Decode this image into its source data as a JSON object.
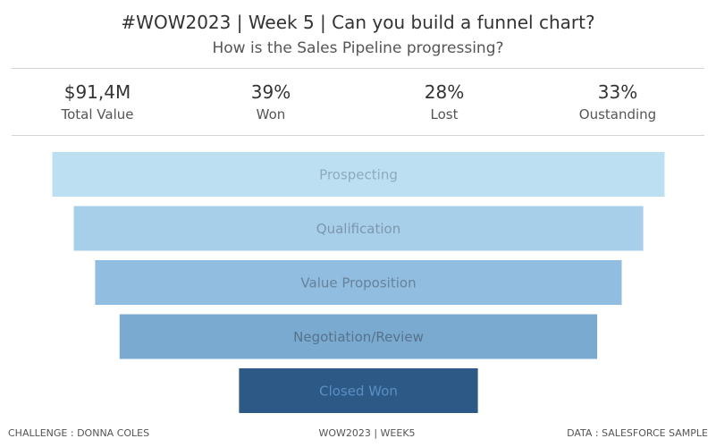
{
  "header": {
    "title": "#WOW2023 | Week 5 | Can you build a funnel chart?",
    "subtitle": "How is the Sales Pipeline progressing?"
  },
  "kpis": [
    {
      "value": "$91,4M",
      "label": "Total Value"
    },
    {
      "value": "39%",
      "label": "Won"
    },
    {
      "value": "28%",
      "label": "Lost"
    },
    {
      "value": "33%",
      "label": "Oustanding"
    }
  ],
  "chart_data": {
    "type": "bar",
    "subtype": "funnel",
    "title": "",
    "categories": [
      "Prospecting",
      "Qualification",
      "Value Proposition",
      "Negotiation/Review",
      "Closed Won"
    ],
    "values": [
      100,
      93,
      86,
      78,
      39
    ],
    "value_unit": "% of pipeline total value (estimated from bar widths)",
    "colors": [
      "#bcdff2",
      "#a8cfea",
      "#91bde0",
      "#7baad1",
      "#2c5985"
    ],
    "label_colors": [
      "#8fa9bf",
      "#7c97ad",
      "#66829b",
      "#56728b",
      "#5b8fc4"
    ],
    "xlabel": "",
    "ylabel": ""
  },
  "footer": {
    "left": "CHALLENGE : DONNA COLES",
    "center": "WOW2023 | WEEK5",
    "right": "DATA : SALESFORCE SAMPLE"
  }
}
